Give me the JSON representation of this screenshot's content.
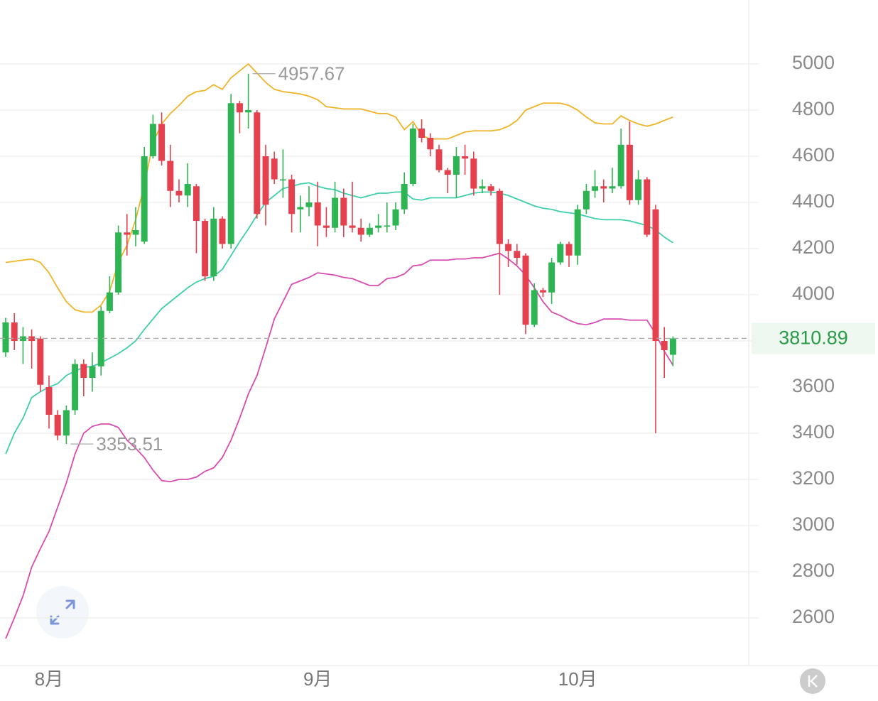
{
  "chart_data": {
    "type": "candlestick",
    "categories": [
      null,
      null,
      null,
      null,
      null,
      "8月",
      null,
      null,
      null,
      null,
      null,
      null,
      null,
      null,
      null,
      null,
      null,
      null,
      null,
      null,
      null,
      null,
      null,
      null,
      null,
      null,
      null,
      null,
      null,
      null,
      null,
      null,
      null,
      null,
      null,
      null,
      "9月",
      null,
      null,
      null,
      null,
      null,
      null,
      null,
      null,
      null,
      null,
      null,
      null,
      null,
      null,
      null,
      null,
      null,
      null,
      null,
      null,
      null,
      null,
      null,
      null,
      null,
      null,
      null,
      null,
      null,
      "10月",
      null,
      null,
      null,
      null,
      null,
      null,
      null,
      null,
      null,
      null,
      null
    ],
    "open": [
      3750,
      3880,
      3800,
      3820,
      3810,
      3600,
      3480,
      3390,
      3500,
      3700,
      3640,
      3690,
      3930,
      4010,
      4270,
      4260,
      4230,
      4600,
      4740,
      4580,
      4450,
      4430,
      4470,
      4320,
      4080,
      4330,
      4220,
      4830,
      4790,
      4790,
      4600,
      4590,
      4500,
      4500,
      4370,
      4380,
      4400,
      4300,
      4290,
      4420,
      4300,
      4290,
      4260,
      4290,
      4300,
      4300,
      4370,
      4480,
      4720,
      4680,
      4630,
      4540,
      4520,
      4600,
      4590,
      4460,
      4470,
      4450,
      4220,
      4190,
      4170,
      3870,
      4020,
      4010,
      4140,
      4220,
      4170,
      4370,
      4450,
      4470,
      4460,
      4470,
      4650,
      4410,
      4500,
      4370,
      3800,
      3740
    ],
    "high": [
      3900,
      3920,
      3860,
      3850,
      3820,
      3650,
      3500,
      3520,
      3720,
      3720,
      3750,
      3950,
      4080,
      4300,
      4350,
      4380,
      4640,
      4780,
      4790,
      4650,
      4500,
      4570,
      4480,
      4330,
      4380,
      4340,
      4870,
      4840,
      4957.67,
      4800,
      4650,
      4620,
      4630,
      4520,
      4430,
      4470,
      4490,
      4380,
      4490,
      4460,
      4490,
      4330,
      4310,
      4350,
      4400,
      4400,
      4530,
      4740,
      4760,
      4700,
      4650,
      4550,
      4640,
      4650,
      4620,
      4500,
      4480,
      4460,
      4240,
      4220,
      4180,
      4050,
      4030,
      4160,
      4230,
      4230,
      4390,
      4480,
      4540,
      4500,
      4550,
      4720,
      4750,
      4540,
      4510,
      4390,
      3860,
      3820
    ],
    "low": [
      3730,
      3760,
      3700,
      3680,
      3580,
      3420,
      3370,
      3353.51,
      3480,
      3560,
      3580,
      3650,
      3920,
      4000,
      4170,
      4210,
      4220,
      4590,
      4560,
      4380,
      4400,
      4380,
      4180,
      4060,
      4060,
      4200,
      4200,
      4700,
      4720,
      4330,
      4300,
      4480,
      4420,
      4270,
      4270,
      4340,
      4210,
      4250,
      4270,
      4250,
      4270,
      4230,
      4250,
      4270,
      4270,
      4280,
      4350,
      4470,
      4660,
      4600,
      4530,
      4440,
      4420,
      4520,
      4430,
      4440,
      4430,
      4000,
      4120,
      4130,
      3830,
      3860,
      3990,
      3960,
      4130,
      4120,
      4130,
      4350,
      4420,
      4400,
      4440,
      4460,
      4390,
      4390,
      4250,
      3400,
      3640,
      3690
    ],
    "close": [
      3880,
      3800,
      3820,
      3800,
      3610,
      3480,
      3390,
      3500,
      3700,
      3640,
      3690,
      3930,
      4010,
      4270,
      4260,
      4280,
      4600,
      4740,
      4580,
      4450,
      4430,
      4480,
      4320,
      4080,
      4330,
      4220,
      4830,
      4790,
      4800,
      4350,
      4390,
      4500,
      4500,
      4350,
      4380,
      4400,
      4300,
      4290,
      4420,
      4300,
      4290,
      4260,
      4290,
      4300,
      4300,
      4370,
      4480,
      4720,
      4680,
      4630,
      4540,
      4520,
      4600,
      4590,
      4460,
      4470,
      4450,
      4220,
      4190,
      4160,
      3870,
      4020,
      4010,
      4140,
      4220,
      4170,
      4370,
      4450,
      4470,
      4460,
      4470,
      4650,
      4410,
      4500,
      4260,
      3800,
      3760,
      3810.89
    ],
    "up_color": "#2fb454",
    "down_color": "#e5404e",
    "bands": [
      {
        "color": "#f0b429",
        "values": [
          4140,
          4145,
          4150,
          4155,
          4140,
          4095,
          4030,
          3970,
          3935,
          3925,
          3925,
          3955,
          4015,
          4140,
          4215,
          4325,
          4475,
          4660,
          4740,
          4785,
          4820,
          4860,
          4880,
          4885,
          4910,
          4890,
          4940,
          4970,
          5000,
          4960,
          4920,
          4890,
          4880,
          4875,
          4870,
          4860,
          4845,
          4815,
          4810,
          4805,
          4805,
          4805,
          4795,
          4785,
          4785,
          4770,
          4715,
          4750,
          4690,
          4675,
          4675,
          4675,
          4690,
          4705,
          4710,
          4710,
          4710,
          4715,
          4730,
          4755,
          4800,
          4815,
          4830,
          4830,
          4830,
          4820,
          4800,
          4770,
          4745,
          4740,
          4740,
          4775,
          4755,
          4740,
          4730,
          4740,
          4755,
          4770
        ]
      },
      {
        "color": "#3ecfaa",
        "values": [
          3310,
          3400,
          3465,
          3555,
          3580,
          3600,
          3615,
          3650,
          3670,
          3685,
          3690,
          3705,
          3725,
          3745,
          3770,
          3800,
          3850,
          3895,
          3940,
          3970,
          4000,
          4030,
          4055,
          4070,
          4080,
          4110,
          4170,
          4230,
          4285,
          4345,
          4400,
          4430,
          4460,
          4470,
          4480,
          4485,
          4470,
          4460,
          4455,
          4440,
          4430,
          4420,
          4430,
          4440,
          4440,
          4445,
          4445,
          4415,
          4410,
          4420,
          4420,
          4420,
          4420,
          4430,
          4440,
          4445,
          4445,
          4440,
          4430,
          4415,
          4400,
          4385,
          4375,
          4370,
          4360,
          4355,
          4350,
          4340,
          4330,
          4325,
          4325,
          4325,
          4320,
          4310,
          4300,
          4280,
          4250,
          4225
        ]
      },
      {
        "color": "#d84cb2",
        "values": [
          2510,
          2600,
          2695,
          2820,
          2900,
          2975,
          3080,
          3185,
          3310,
          3400,
          3430,
          3440,
          3440,
          3425,
          3370,
          3335,
          3295,
          3240,
          3195,
          3190,
          3200,
          3200,
          3210,
          3235,
          3250,
          3295,
          3370,
          3465,
          3570,
          3650,
          3770,
          3895,
          3970,
          4045,
          4060,
          4075,
          4095,
          4090,
          4085,
          4075,
          4070,
          4055,
          4040,
          4040,
          4070,
          4075,
          4090,
          4125,
          4130,
          4150,
          4150,
          4150,
          4155,
          4155,
          4160,
          4160,
          4170,
          4180,
          4155,
          4125,
          4085,
          4030,
          3970,
          3925,
          3910,
          3890,
          3875,
          3870,
          3880,
          3895,
          3895,
          3895,
          3890,
          3890,
          3890,
          3830,
          3755,
          3695
        ]
      }
    ],
    "ylim": [
      2400,
      5277
    ],
    "yticks": [
      2600,
      2800,
      3000,
      3200,
      3400,
      3600,
      3800,
      4000,
      4200,
      4400,
      4600,
      4800,
      5000
    ],
    "grid": true
  }
}
